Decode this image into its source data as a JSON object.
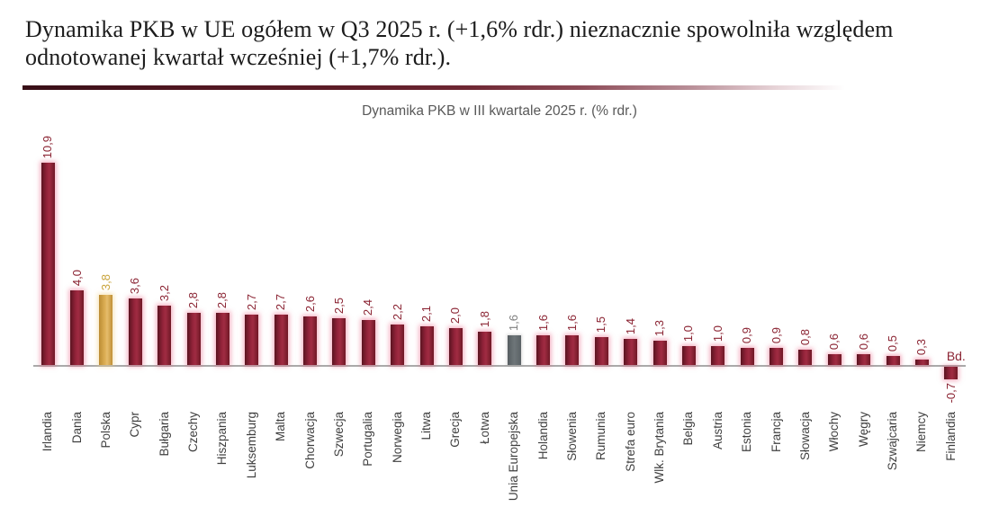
{
  "header": {
    "title_line1": "Dynamika PKB w UE ogółem w Q3 2025 r. (+1,6% rdr.) nieznacznie spowolniła względem",
    "title_line2": "odnotowanej kwartał wcześniej (+1,7% rdr.)."
  },
  "chart_data": {
    "type": "bar",
    "title": "Dynamika PKB w III kwartale 2025 r. (% rdr.)",
    "xlabel": "",
    "ylabel": "% rdr.",
    "ylim": [
      -1,
      11
    ],
    "grid": false,
    "legend": "none",
    "categories": [
      "Irlandia",
      "Dania",
      "Polska",
      "Cypr",
      "Bułgaria",
      "Czechy",
      "Hiszpania",
      "Luksemburg",
      "Malta",
      "Chorwacja",
      "Szwecja",
      "Portugalia",
      "Norwegia",
      "Litwa",
      "Grecja",
      "Łotwa",
      "Unia Europejska",
      "Holandia",
      "Słowenia",
      "Rumunia",
      "Strefa euro",
      "Wlk. Brytania",
      "Belgia",
      "Austria",
      "Estonia",
      "Francja",
      "Słowacja",
      "Włochy",
      "Węgry",
      "Szwajcaria",
      "Niemcy",
      "Finlandia"
    ],
    "values": [
      10.9,
      4.0,
      3.8,
      3.6,
      3.2,
      2.8,
      2.8,
      2.7,
      2.7,
      2.6,
      2.5,
      2.4,
      2.2,
      2.1,
      2.0,
      1.8,
      1.6,
      1.6,
      1.6,
      1.5,
      1.4,
      1.3,
      1.0,
      1.0,
      0.9,
      0.9,
      0.8,
      0.6,
      0.6,
      0.5,
      0.3,
      -0.7
    ],
    "value_labels": [
      "10,9",
      "4,0",
      "3,8",
      "3,6",
      "3,2",
      "2,8",
      "2,8",
      "2,7",
      "2,7",
      "2,6",
      "2,5",
      "2,4",
      "2,2",
      "2,1",
      "2,0",
      "1,8",
      "1,6",
      "1,6",
      "1,6",
      "1,5",
      "1,4",
      "1,3",
      "1,0",
      "1,0",
      "0,9",
      "0,9",
      "0,8",
      "0,6",
      "0,6",
      "0,5",
      "0,3",
      "-0,7"
    ],
    "special_bars": {
      "Polska": "gold",
      "Unia Europejska": "gray"
    },
    "annotations": [
      {
        "text": "Bd.",
        "category": "Finlandia",
        "position": "above-axis"
      }
    ],
    "colors": {
      "bar_default": "#8f2136",
      "bar_poland": "#dcab55",
      "bar_eu": "#6e7679",
      "value_label": "#8b2433",
      "category_label": "#3f3f3f",
      "chart_title": "#595959",
      "axis_line": "#ababab",
      "divider_dark": "#4f1620"
    }
  }
}
